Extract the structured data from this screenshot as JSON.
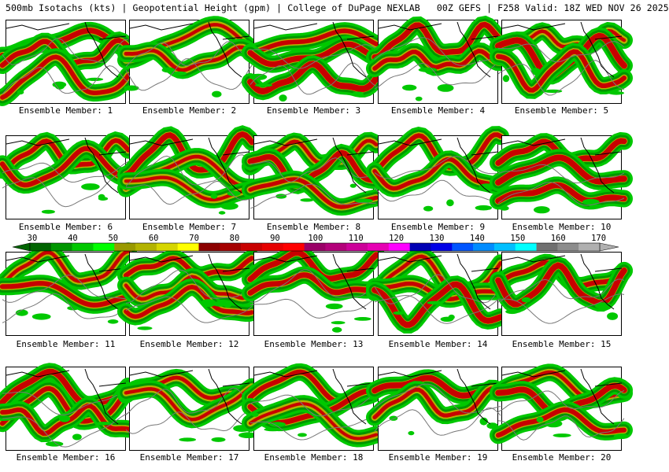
{
  "header": {
    "title": "500mb Isotachs (kts) | Geopotential Height (gpm) | College of DuPage NEXLAB   00Z GEFS | F258 Valid: 18Z WED NOV 26 2025"
  },
  "panels": [
    {
      "label": "Ensemble Member: 1"
    },
    {
      "label": "Ensemble Member: 2"
    },
    {
      "label": "Ensemble Member: 3"
    },
    {
      "label": "Ensemble Member: 4"
    },
    {
      "label": "Ensemble Member: 5"
    },
    {
      "label": "Ensemble Member: 6"
    },
    {
      "label": "Ensemble Member: 7"
    },
    {
      "label": "Ensemble Member: 8"
    },
    {
      "label": "Ensemble Member: 9"
    },
    {
      "label": "Ensemble Member: 10"
    },
    {
      "label": "Ensemble Member: 11"
    },
    {
      "label": "Ensemble Member: 12"
    },
    {
      "label": "Ensemble Member: 13"
    },
    {
      "label": "Ensemble Member: 14"
    },
    {
      "label": "Ensemble Member: 15"
    },
    {
      "label": "Ensemble Member: 16"
    },
    {
      "label": "Ensemble Member: 17"
    },
    {
      "label": "Ensemble Member: 18"
    },
    {
      "label": "Ensemble Member: 19"
    },
    {
      "label": "Ensemble Member: 20"
    }
  ],
  "colorbar": {
    "tick_labels": [
      "30",
      "40",
      "50",
      "60",
      "70",
      "80",
      "90",
      "100",
      "110",
      "120",
      "130",
      "140",
      "150",
      "160",
      "170"
    ],
    "colors": [
      "#006400",
      "#009600",
      "#00c800",
      "#00ff00",
      "#999900",
      "#b3b300",
      "#d6d600",
      "#ffff00",
      "#8b0000",
      "#a50000",
      "#c80000",
      "#e60000",
      "#ff0000",
      "#990066",
      "#b3007a",
      "#cc0099",
      "#e600b3",
      "#ff00ff",
      "#0000b3",
      "#0000e6",
      "#0055ff",
      "#008cff",
      "#00bfff",
      "#00ffff",
      "#707070",
      "#8c8c8c",
      "#b0b0b0"
    ]
  }
}
